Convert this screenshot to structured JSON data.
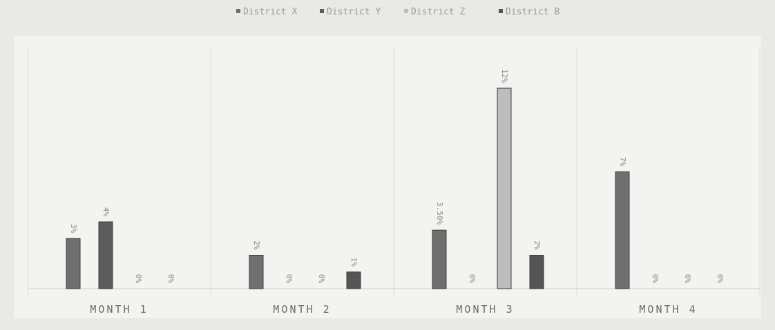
{
  "chart_data": {
    "type": "bar",
    "title": "",
    "xlabel": "",
    "ylabel": "",
    "categories": [
      "MONTH 1",
      "MONTH 2",
      "MONTH 3",
      "MONTH 4"
    ],
    "series": [
      {
        "name": "District X",
        "values": [
          3,
          2,
          3.5,
          7
        ],
        "labels": [
          "3%",
          "2%",
          "3.50%",
          "7%"
        ]
      },
      {
        "name": "District Y",
        "values": [
          4,
          0,
          0,
          0
        ],
        "labels": [
          "4%",
          "0%",
          "0%",
          "0%"
        ]
      },
      {
        "name": "District Z",
        "values": [
          0,
          0,
          12,
          0
        ],
        "labels": [
          "0%",
          "0%",
          "12%",
          "0%"
        ]
      },
      {
        "name": "District B",
        "values": [
          0,
          1,
          2,
          0
        ],
        "labels": [
          "0%",
          "1%",
          "2%",
          "0%"
        ]
      }
    ],
    "colors": [
      "#6f6f6f",
      "#5c5c5c",
      "#bdbdbd",
      "#555555"
    ],
    "ylim": [
      0,
      12
    ],
    "grid": false,
    "legend": "top"
  }
}
